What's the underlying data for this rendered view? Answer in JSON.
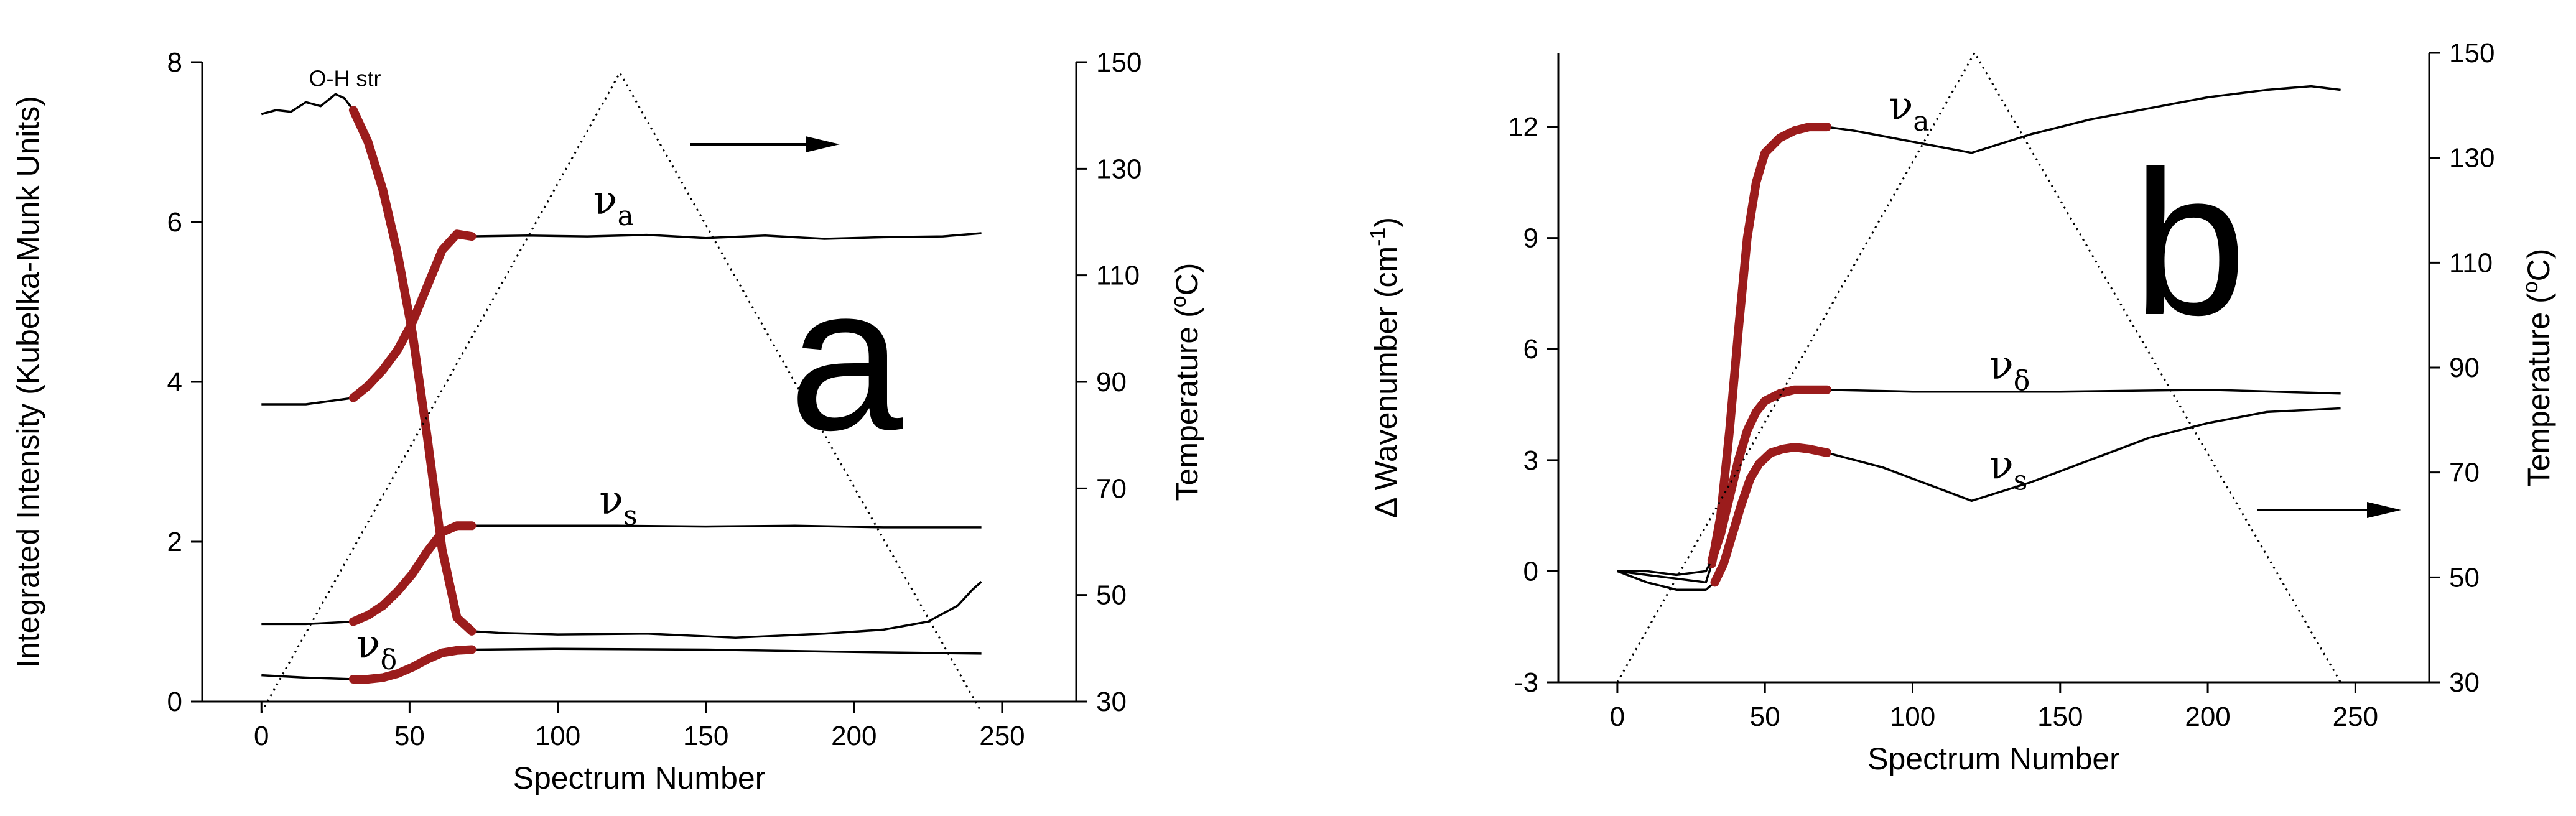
{
  "colors": {
    "heating_highlight": "#9b1c1c",
    "line": "#000000"
  },
  "chart_data": [
    {
      "type": "line",
      "panel_label": "a",
      "xlabel": "Spectrum Number",
      "ylabel": "Integrated Intensity (Kubelka-Munk Units)",
      "y2label_main": "Temperature (",
      "y2label_sup": "o",
      "y2label_end": "C)",
      "xlim": [
        -20,
        275
      ],
      "ylim": [
        0,
        8
      ],
      "y2lim": [
        30,
        150
      ],
      "xticks": [
        0,
        50,
        100,
        150,
        200,
        250
      ],
      "yticks": [
        0,
        2,
        4,
        6,
        8
      ],
      "y2ticks": [
        30,
        50,
        70,
        90,
        110,
        130,
        150
      ],
      "arrow_direction": "right",
      "annotations": [
        {
          "text": "O-H str",
          "x": 16,
          "y": 7.7
        },
        {
          "sym": "ν",
          "sub": "a",
          "x": 112,
          "y": 6.1
        },
        {
          "sym": "ν",
          "sub": "s",
          "x": 114,
          "y": 2.35
        },
        {
          "sym": "ν",
          "sub": "δ",
          "x": 32,
          "y": 0.55
        }
      ],
      "series": [
        {
          "name": "O-H str",
          "x": [
            0,
            5,
            10,
            15,
            20,
            25,
            28,
            31,
            36,
            41,
            46,
            51,
            56,
            61,
            66,
            71,
            80,
            100,
            130,
            160,
            190,
            210,
            225,
            235,
            240,
            243
          ],
          "y": [
            7.35,
            7.4,
            7.38,
            7.5,
            7.45,
            7.6,
            7.55,
            7.4,
            7.0,
            6.4,
            5.6,
            4.6,
            3.3,
            1.9,
            1.05,
            0.88,
            0.86,
            0.84,
            0.85,
            0.8,
            0.85,
            0.9,
            1.0,
            1.2,
            1.4,
            1.5
          ],
          "highlight": [
            31,
            71
          ]
        },
        {
          "name": "νa",
          "x": [
            0,
            15,
            31,
            36,
            41,
            46,
            51,
            56,
            61,
            66,
            71,
            90,
            110,
            130,
            150,
            170,
            190,
            210,
            230,
            243
          ],
          "y": [
            3.72,
            3.72,
            3.8,
            3.95,
            4.15,
            4.4,
            4.75,
            5.2,
            5.65,
            5.85,
            5.82,
            5.83,
            5.82,
            5.84,
            5.8,
            5.83,
            5.79,
            5.81,
            5.82,
            5.86
          ],
          "highlight": [
            31,
            71
          ]
        },
        {
          "name": "νs",
          "x": [
            0,
            15,
            31,
            36,
            41,
            46,
            51,
            56,
            61,
            66,
            71,
            90,
            120,
            150,
            180,
            210,
            243
          ],
          "y": [
            0.97,
            0.97,
            1.0,
            1.08,
            1.2,
            1.38,
            1.6,
            1.88,
            2.12,
            2.2,
            2.2,
            2.2,
            2.2,
            2.19,
            2.2,
            2.18,
            2.18
          ],
          "highlight": [
            31,
            71
          ]
        },
        {
          "name": "νδ",
          "x": [
            0,
            15,
            31,
            36,
            41,
            46,
            51,
            56,
            61,
            66,
            71,
            100,
            150,
            200,
            243
          ],
          "y": [
            0.33,
            0.3,
            0.28,
            0.28,
            0.3,
            0.35,
            0.43,
            0.53,
            0.61,
            0.64,
            0.65,
            0.66,
            0.65,
            0.62,
            0.6
          ],
          "highlight": [
            31,
            71
          ]
        },
        {
          "name": "Temperature",
          "axis": "y2",
          "style": "dotted",
          "x": [
            0,
            121,
            243
          ],
          "y": [
            28,
            148,
            28
          ]
        }
      ]
    },
    {
      "type": "line",
      "panel_label": "b",
      "xlabel": "Spectrum Number",
      "ylabel_pre": "Δ Wavenumber (cm",
      "ylabel_sup": "-1",
      "ylabel_post": ")",
      "y2label_main": "Temperature (",
      "y2label_sup": "o",
      "y2label_end": "C)",
      "xlim": [
        -20,
        275
      ],
      "ylim": [
        -3,
        14
      ],
      "y2lim": [
        30,
        150
      ],
      "xticks": [
        0,
        50,
        100,
        150,
        200,
        250
      ],
      "yticks": [
        -3,
        0,
        3,
        6,
        9,
        12
      ],
      "y2ticks": [
        30,
        50,
        70,
        90,
        110,
        130,
        150
      ],
      "arrow_direction": "right",
      "annotations": [
        {
          "sym": "ν",
          "sub": "a",
          "x": 92,
          "y": 12.2
        },
        {
          "sym": "ν",
          "sub": "δ",
          "x": 126,
          "y": 5.2
        },
        {
          "sym": "ν",
          "sub": "s",
          "x": 126,
          "y": 2.5
        }
      ],
      "series": [
        {
          "name": "νa",
          "x": [
            0,
            10,
            20,
            30,
            32,
            35,
            38,
            41,
            44,
            47,
            50,
            55,
            60,
            65,
            71,
            80,
            100,
            120,
            140,
            160,
            180,
            200,
            220,
            235,
            245
          ],
          "y": [
            0,
            -0.1,
            -0.2,
            -0.3,
            0.2,
            1.5,
            3.8,
            6.5,
            9.0,
            10.5,
            11.3,
            11.7,
            11.9,
            12.0,
            12.0,
            11.9,
            11.6,
            11.3,
            11.8,
            12.2,
            12.5,
            12.8,
            13.0,
            13.1,
            13.0
          ],
          "highlight": [
            32,
            71
          ]
        },
        {
          "name": "νδ",
          "x": [
            0,
            10,
            20,
            30,
            32,
            35,
            38,
            41,
            44,
            47,
            50,
            55,
            60,
            65,
            71,
            100,
            150,
            200,
            245
          ],
          "y": [
            0,
            0,
            -0.1,
            0,
            0.3,
            1.0,
            2.0,
            3.0,
            3.8,
            4.3,
            4.6,
            4.8,
            4.9,
            4.9,
            4.9,
            4.85,
            4.85,
            4.9,
            4.8
          ],
          "highlight": [
            32,
            71
          ]
        },
        {
          "name": "νs",
          "x": [
            0,
            10,
            20,
            30,
            33,
            36,
            39,
            42,
            45,
            48,
            52,
            56,
            60,
            65,
            71,
            90,
            110,
            120,
            140,
            160,
            180,
            200,
            220,
            245
          ],
          "y": [
            0,
            -0.3,
            -0.5,
            -0.5,
            -0.3,
            0.2,
            1.0,
            1.8,
            2.5,
            2.9,
            3.2,
            3.3,
            3.35,
            3.3,
            3.2,
            2.8,
            2.2,
            1.9,
            2.4,
            3.0,
            3.6,
            4.0,
            4.3,
            4.4
          ],
          "highlight": [
            32,
            71
          ]
        },
        {
          "name": "Temperature",
          "axis": "y2",
          "style": "dotted",
          "x": [
            0,
            121,
            245
          ],
          "y": [
            30,
            150,
            30
          ]
        }
      ]
    }
  ]
}
